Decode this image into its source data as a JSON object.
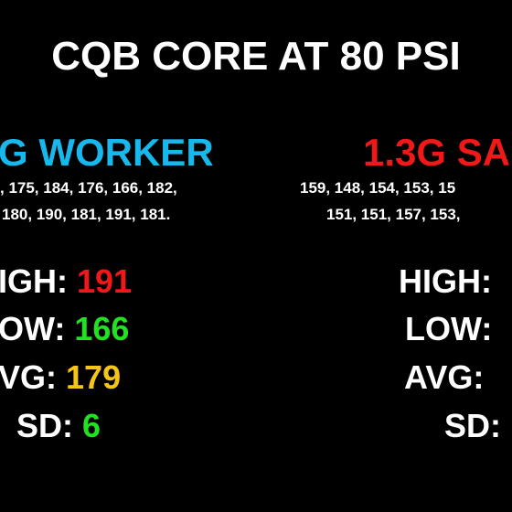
{
  "title": "CQB CORE AT 80 PSI",
  "left": {
    "heading": "G WORKER",
    "shots": [
      ", 175, 184, 176, 166, 182,",
      "180, 190, 181, 191, 181."
    ],
    "stats": [
      {
        "label": "IGH:",
        "value": 191
      },
      {
        "label": "OW:",
        "value": 166
      },
      {
        "label": "VG:",
        "value": 179
      },
      {
        "label": "SD:",
        "value": 6
      }
    ]
  },
  "right": {
    "heading": "1.3G SA",
    "shots": [
      "159, 148, 154, 153, 15",
      "151, 151, 157, 153,"
    ],
    "stats": [
      {
        "label": "HIGH:"
      },
      {
        "label": "LOW:"
      },
      {
        "label": "AVG:"
      },
      {
        "label": "SD:"
      }
    ]
  }
}
